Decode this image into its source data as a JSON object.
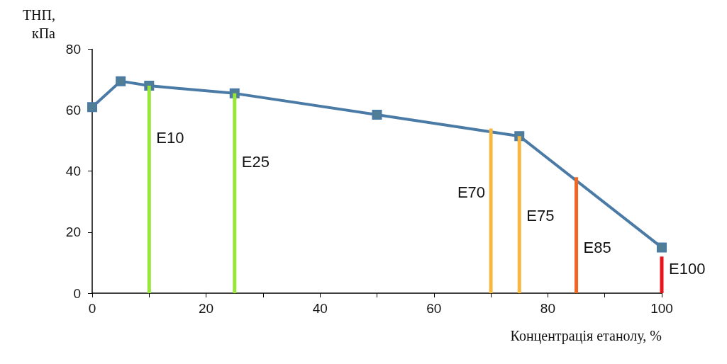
{
  "chart_data": {
    "type": "line",
    "xlabel": "Концентрація етанолу, %",
    "ylabel": "ТНП, кПа",
    "xlim": [
      0,
      100
    ],
    "xticks": [
      0,
      20,
      40,
      60,
      80,
      100
    ],
    "ylim": [
      0,
      80
    ],
    "yticks": [
      0,
      20,
      40,
      60,
      80
    ],
    "grid": false,
    "marker": "square",
    "line_style": "solid",
    "series": [
      {
        "color": "#4a7aa6",
        "x": [
          0,
          5,
          10,
          25,
          50,
          75,
          100
        ],
        "values": [
          61,
          69.5,
          68,
          65.5,
          58.5,
          51.5,
          15
        ]
      },
      {
        "type": "bar",
        "x": [
          10,
          25,
          70,
          75,
          85,
          100
        ],
        "values": [
          68,
          65.5,
          54,
          51.5,
          38,
          12
        ],
        "colors": [
          "#99e63a",
          "#99e63a",
          "#f5b942",
          "#f5b942",
          "#f26522",
          "#e8141c"
        ]
      }
    ],
    "annotations": [
      {
        "text": "E10",
        "x": 10,
        "y": 51
      },
      {
        "text": "E25",
        "x": 25,
        "y": 43
      },
      {
        "text": "E70",
        "x": 70,
        "y": 33
      },
      {
        "text": "E75",
        "x": 75,
        "y": 25.5
      },
      {
        "text": "E85",
        "x": 85,
        "y": 15
      },
      {
        "text": "E100",
        "x": 100,
        "y": 8
      }
    ]
  }
}
